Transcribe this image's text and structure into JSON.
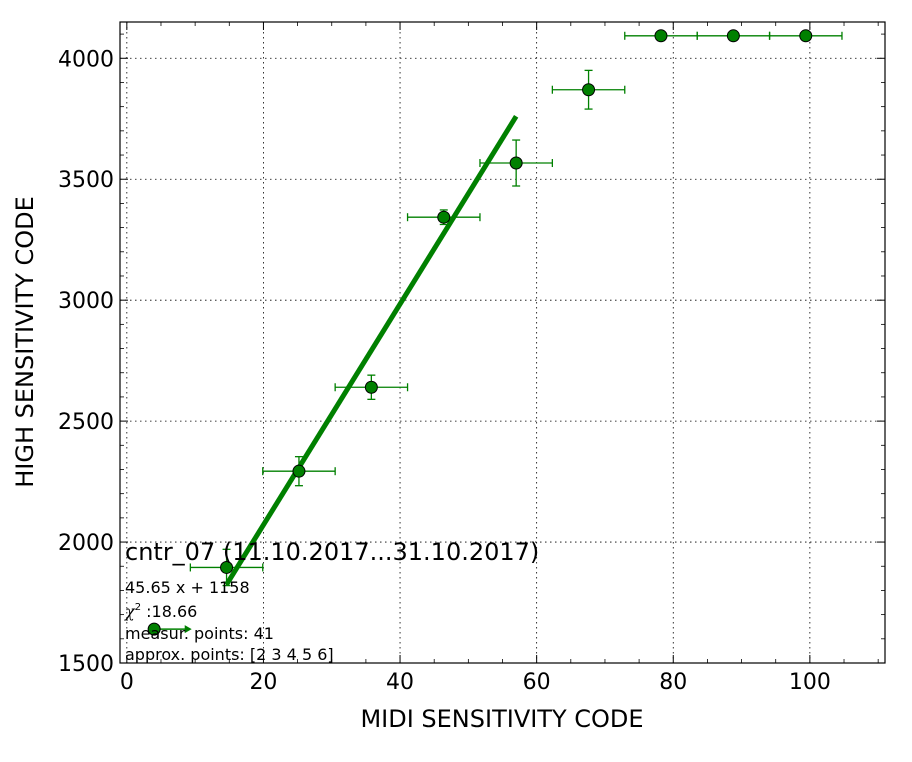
{
  "chart_data": {
    "type": "scatter",
    "xlabel": "MIDI SENSITIVITY CODE",
    "ylabel": "HIGH SENSITIVITY CODE",
    "xlim": [
      -1,
      111
    ],
    "ylim": [
      1500,
      4150
    ],
    "x_ticks": [
      0,
      20,
      40,
      60,
      80,
      100
    ],
    "y_ticks": [
      1500,
      2000,
      2500,
      3000,
      3500,
      4000
    ],
    "grid": true,
    "colors": {
      "series": "#008000",
      "marker_fill": "#008000",
      "edge": "#000000"
    },
    "points": [
      {
        "x": 4.0,
        "y": 1640,
        "xerr": 0,
        "yerr": 0
      },
      {
        "x": 14.6,
        "y": 1895,
        "xerr": 5.3,
        "yerr": 75
      },
      {
        "x": 25.2,
        "y": 2293,
        "xerr": 5.3,
        "yerr": 60
      },
      {
        "x": 35.8,
        "y": 2640,
        "xerr": 5.3,
        "yerr": 50
      },
      {
        "x": 46.4,
        "y": 3343,
        "xerr": 5.3,
        "yerr": 30
      },
      {
        "x": 57.0,
        "y": 3567,
        "xerr": 5.3,
        "yerr": 95
      },
      {
        "x": 67.6,
        "y": 3870,
        "xerr": 5.3,
        "yerr": 80
      },
      {
        "x": 78.2,
        "y": 4093,
        "xerr": 5.3,
        "yerr": 0
      },
      {
        "x": 88.8,
        "y": 4093,
        "xerr": 5.3,
        "yerr": 0
      },
      {
        "x": 99.4,
        "y": 4093,
        "xerr": 5.3,
        "yerr": 0
      }
    ],
    "arrow_point": {
      "x": 4.0,
      "y": 1640,
      "to_x": 9.5
    },
    "fit_line": {
      "slope": 45.65,
      "intercept": 1158,
      "x_start": 14.6,
      "x_end": 57.0
    },
    "annotation": {
      "title": "cntr_07 (11.10.2017...31.10.2017)",
      "equation": "45.65 x + 1158",
      "chi_symbol": "χ",
      "chi_exp": "2",
      "chi_value": " :18.66",
      "measured": "measur. points: 41",
      "approx": "approx. points: [2 3 4 5 6]"
    }
  }
}
